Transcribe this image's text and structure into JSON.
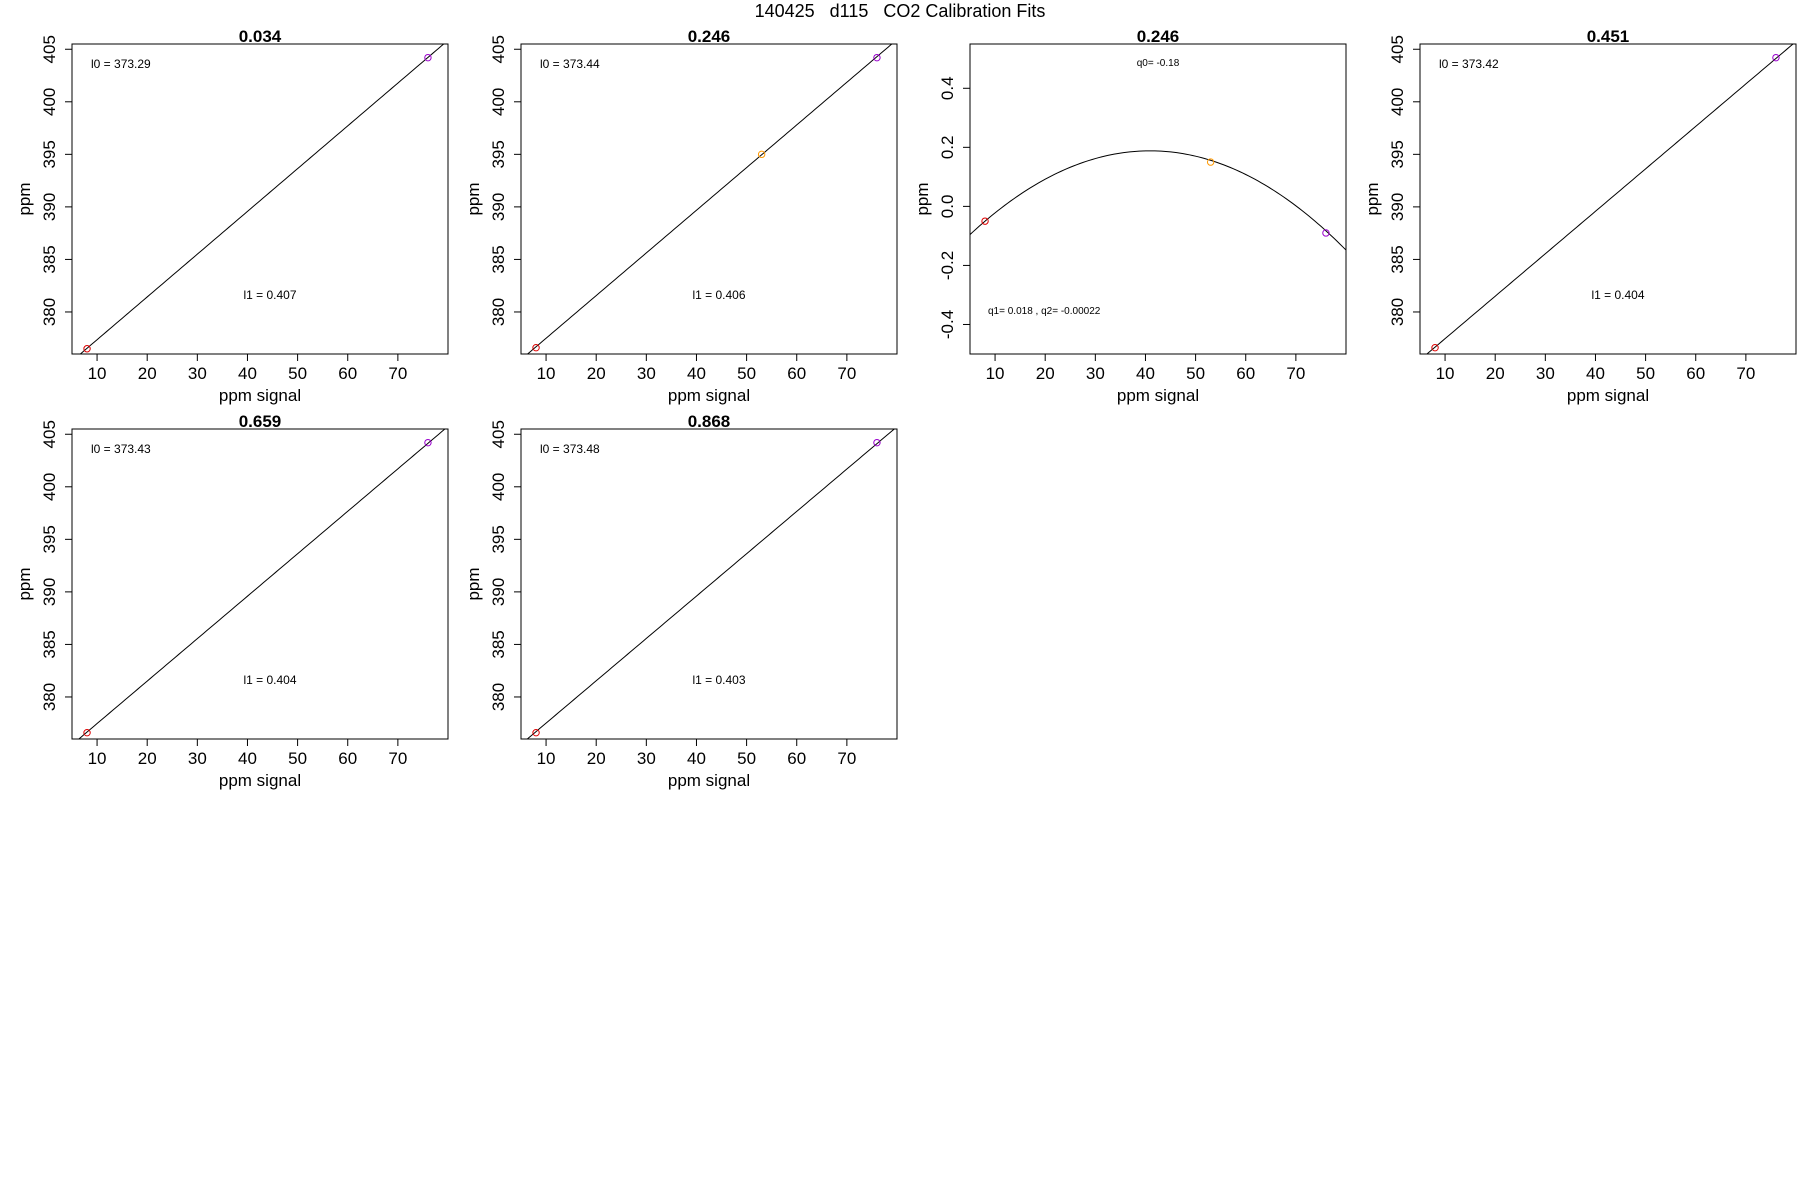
{
  "figure": {
    "title": "140425   d115   CO2 Calibration Fits"
  },
  "chart_data": [
    {
      "type": "line",
      "title": "0.034",
      "xlabel": "ppm signal",
      "ylabel": "ppm",
      "xlim": [
        5,
        80
      ],
      "ylim": [
        376,
        405.5
      ],
      "xticks": [
        10,
        20,
        30,
        40,
        50,
        60,
        70
      ],
      "yticks": [
        380,
        385,
        390,
        395,
        400,
        405
      ],
      "fit": {
        "kind": "linear",
        "intercept": 373.29,
        "slope": 0.407
      },
      "points": [
        {
          "x": 8.0,
          "y": 376.5,
          "color": "#dd0000"
        },
        {
          "x": 76.0,
          "y": 404.2,
          "color": "#9900cc"
        }
      ],
      "annotations": [
        {
          "text": "l0 =  373.29",
          "pos": "top-left"
        },
        {
          "text": "l1 =  0.407",
          "pos": "bottom-center"
        }
      ],
      "grid": false
    },
    {
      "type": "line",
      "title": "0.246",
      "xlabel": "ppm signal",
      "ylabel": "ppm",
      "xlim": [
        5,
        80
      ],
      "ylim": [
        376,
        405.5
      ],
      "xticks": [
        10,
        20,
        30,
        40,
        50,
        60,
        70
      ],
      "yticks": [
        380,
        385,
        390,
        395,
        400,
        405
      ],
      "fit": {
        "kind": "linear",
        "intercept": 373.44,
        "slope": 0.406
      },
      "points": [
        {
          "x": 8.0,
          "y": 376.6,
          "color": "#dd0000"
        },
        {
          "x": 53.0,
          "y": 395.0,
          "color": "#ff9900"
        },
        {
          "x": 76.0,
          "y": 404.2,
          "color": "#9900cc"
        }
      ],
      "annotations": [
        {
          "text": "l0 =  373.44",
          "pos": "top-left"
        },
        {
          "text": "l1 =  0.406",
          "pos": "bottom-center"
        }
      ],
      "grid": false
    },
    {
      "type": "line",
      "title": "0.246",
      "xlabel": "ppm signal",
      "ylabel": "ppm",
      "xlim": [
        5,
        80
      ],
      "ylim": [
        -0.5,
        0.55
      ],
      "xticks": [
        10,
        20,
        30,
        40,
        50,
        60,
        70
      ],
      "yticks": [
        -0.4,
        -0.2,
        0.0,
        0.2,
        0.4
      ],
      "fit": {
        "kind": "quadratic",
        "q0": -0.18,
        "q1": 0.018,
        "q2": -0.00022
      },
      "points": [
        {
          "x": 8.0,
          "y": -0.05,
          "color": "#dd0000"
        },
        {
          "x": 53.0,
          "y": 0.15,
          "color": "#ff9900"
        },
        {
          "x": 76.0,
          "y": -0.09,
          "color": "#9900cc"
        }
      ],
      "annotations": [
        {
          "text": "q0= -0.18",
          "pos": "top-center"
        },
        {
          "text": "q1= 0.018 , q2= -0.00022",
          "pos": "bottom-left"
        }
      ],
      "grid": false
    },
    {
      "type": "line",
      "title": "0.451",
      "xlabel": "ppm signal",
      "ylabel": "ppm",
      "xlim": [
        5,
        80
      ],
      "ylim": [
        376,
        405.5
      ],
      "xticks": [
        10,
        20,
        30,
        40,
        50,
        60,
        70
      ],
      "yticks": [
        380,
        385,
        390,
        395,
        400,
        405
      ],
      "fit": {
        "kind": "linear",
        "intercept": 373.42,
        "slope": 0.404
      },
      "points": [
        {
          "x": 8.0,
          "y": 376.6,
          "color": "#dd0000"
        },
        {
          "x": 76.0,
          "y": 404.2,
          "color": "#9900cc"
        }
      ],
      "annotations": [
        {
          "text": "l0 =  373.42",
          "pos": "top-left"
        },
        {
          "text": "l1 =  0.404",
          "pos": "bottom-center"
        }
      ],
      "grid": false
    },
    {
      "type": "line",
      "title": "0.659",
      "xlabel": "ppm signal",
      "ylabel": "ppm",
      "xlim": [
        5,
        80
      ],
      "ylim": [
        376,
        405.5
      ],
      "xticks": [
        10,
        20,
        30,
        40,
        50,
        60,
        70
      ],
      "yticks": [
        380,
        385,
        390,
        395,
        400,
        405
      ],
      "fit": {
        "kind": "linear",
        "intercept": 373.43,
        "slope": 0.404
      },
      "points": [
        {
          "x": 8.0,
          "y": 376.6,
          "color": "#dd0000"
        },
        {
          "x": 76.0,
          "y": 404.2,
          "color": "#9900cc"
        }
      ],
      "annotations": [
        {
          "text": "l0 =  373.43",
          "pos": "top-left"
        },
        {
          "text": "l1 =  0.404",
          "pos": "bottom-center"
        }
      ],
      "grid": false
    },
    {
      "type": "line",
      "title": "0.868",
      "xlabel": "ppm signal",
      "ylabel": "ppm",
      "xlim": [
        5,
        80
      ],
      "ylim": [
        376,
        405.5
      ],
      "xticks": [
        10,
        20,
        30,
        40,
        50,
        60,
        70
      ],
      "yticks": [
        380,
        385,
        390,
        395,
        400,
        405
      ],
      "fit": {
        "kind": "linear",
        "intercept": 373.48,
        "slope": 0.403
      },
      "points": [
        {
          "x": 8.0,
          "y": 376.6,
          "color": "#dd0000"
        },
        {
          "x": 76.0,
          "y": 404.2,
          "color": "#9900cc"
        }
      ],
      "annotations": [
        {
          "text": "l0 =  373.48",
          "pos": "top-left"
        },
        {
          "text": "l1 =  0.403",
          "pos": "bottom-center"
        }
      ],
      "grid": false
    }
  ]
}
